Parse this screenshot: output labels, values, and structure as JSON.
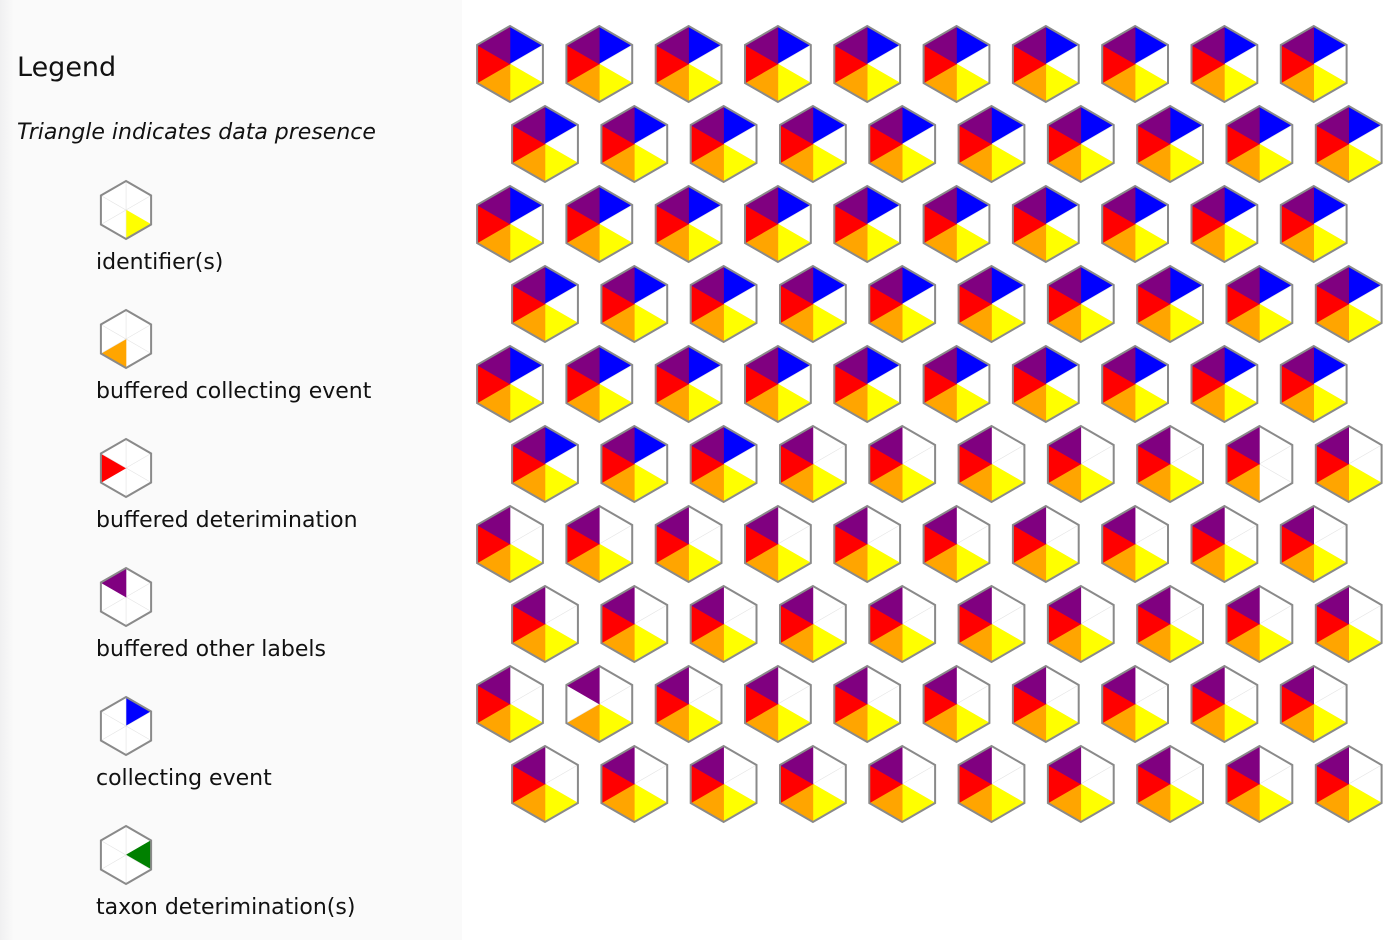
{
  "legend": {
    "title": "Legend",
    "subtitle": "Triangle indicates data presence",
    "items": [
      {
        "label": "identifier(s)",
        "color": "#ffff00",
        "segment": "bottom-right"
      },
      {
        "label": "buffered collecting event",
        "color": "#ffa500",
        "segment": "bottom-left"
      },
      {
        "label": "buffered deterimination",
        "color": "#ff0000",
        "segment": "left"
      },
      {
        "label": "buffered other labels",
        "color": "#800080",
        "segment": "top-left"
      },
      {
        "label": "collecting event",
        "color": "#0000ff",
        "segment": "top-right"
      },
      {
        "label": "taxon deterimination(s)",
        "color": "#008000",
        "segment": "right"
      }
    ]
  },
  "colors": {
    "hex_border": "#8a8a8a",
    "empty_segment": "#ffffff",
    "segment_divider": "#e6e6e6",
    "legend_background": "#fafafa"
  },
  "hex_grid": {
    "segment_order": [
      "top-right",
      "right",
      "bottom-right",
      "bottom-left",
      "left",
      "top-left"
    ],
    "rows": [
      [
        "YOR+B",
        "YOR+B",
        "YOR+B",
        "YOR+B",
        "YOR+B",
        "YOR+B",
        "YOR+B",
        "YOR+B",
        "YOR+B",
        "YOR+B"
      ],
      [
        "YOR+B",
        "YOR+B",
        "YOR+B",
        "YOR+B",
        "YOR+B",
        "YOR+B",
        "YOR+B",
        "YOR+B",
        "YOR+B",
        "YOR+B"
      ],
      [
        "YOR+B",
        "YOR+B",
        "YOR+B",
        "YOR+B",
        "YOR+B",
        "YOR+B",
        "YOR+B",
        "YOR+B",
        "YOR+B",
        "YOR+B"
      ],
      [
        "YOR+B",
        "YOR+B",
        "YOR+B",
        "YOR+B",
        "YOR+B",
        "YOR+B",
        "YOR+B",
        "YOR+B",
        "YOR+B",
        "YOR+B"
      ],
      [
        "YOR+B",
        "YOR+B",
        "YOR+B",
        "YOR+B",
        "YOR+B",
        "YOR+B",
        "YOR+B",
        "YOR+B",
        "YOR+B",
        "YOR+B"
      ],
      [
        "YOR+B",
        "YOR+B",
        "YOR+B",
        "YOR",
        "YOR",
        "YOR",
        "YOR",
        "YOR",
        "YOR-Y",
        "YOR"
      ],
      [
        "YOR",
        "YOR",
        "YOR",
        "YOR",
        "YOR",
        "YOR",
        "YOR",
        "YOR",
        "YOR",
        "YOR"
      ],
      [
        "YOR",
        "YOR",
        "YOR",
        "YOR",
        "YOR",
        "YOR",
        "YOR",
        "YOR",
        "YOR",
        "YOR"
      ],
      [
        "YOR",
        "YO-P",
        "YOR",
        "YOR",
        "YOR",
        "YOR",
        "YOR",
        "YOR",
        "YOR",
        "YOR"
      ],
      [
        "YOR",
        "YOR",
        "YOR",
        "YOR",
        "YOR",
        "YOR",
        "YOR",
        "YOR",
        "YOR",
        "YOR"
      ]
    ],
    "cell_types": {
      "YOR+B": {
        "top-right": "#0000ff",
        "right": "#ffffff",
        "bottom-right": "#ffff00",
        "bottom-left": "#ffa500",
        "left": "#ff0000",
        "top-left": "#800080"
      },
      "YOR": {
        "top-right": "#ffffff",
        "right": "#ffffff",
        "bottom-right": "#ffff00",
        "bottom-left": "#ffa500",
        "left": "#ff0000",
        "top-left": "#800080"
      },
      "YOR-Y": {
        "top-right": "#ffffff",
        "right": "#ffffff",
        "bottom-right": "#ffffff",
        "bottom-left": "#ffa500",
        "left": "#ff0000",
        "top-left": "#800080"
      },
      "YO-P": {
        "top-right": "#ffffff",
        "right": "#ffffff",
        "bottom-right": "#ffff00",
        "bottom-left": "#ffa500",
        "left": "#ffffff",
        "top-left": "#800080"
      }
    }
  }
}
